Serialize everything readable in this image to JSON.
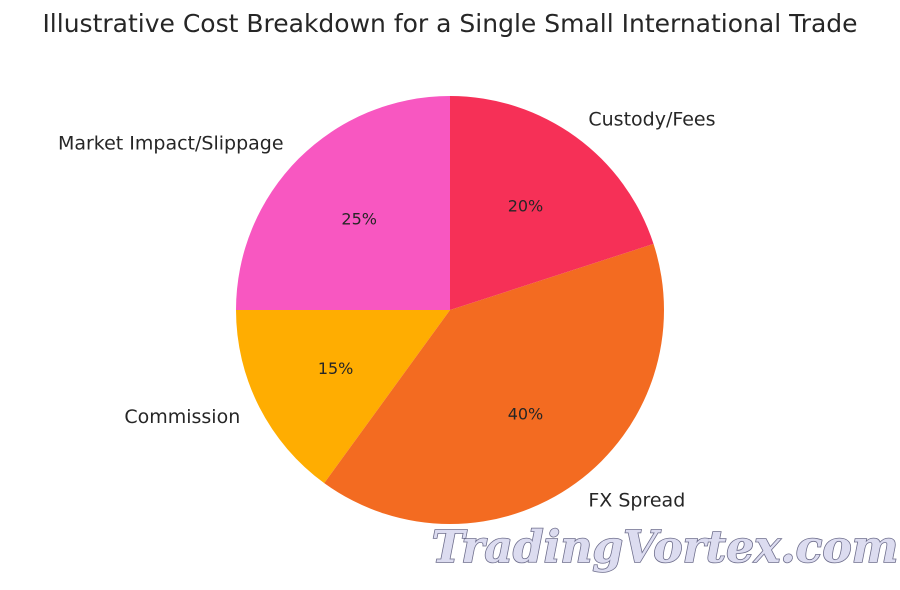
{
  "chart_data": {
    "type": "pie",
    "title": "Illustrative Cost Breakdown for a Single Small International Trade",
    "slices": [
      {
        "label": "Market Impact/Slippage",
        "value": 25,
        "pct_label": "25%",
        "color": "#f857c1"
      },
      {
        "label": "Commission",
        "value": 15,
        "pct_label": "15%",
        "color": "#ffad01"
      },
      {
        "label": "FX Spread",
        "value": 40,
        "pct_label": "40%",
        "color": "#f36b21"
      },
      {
        "label": "Custody/Fees",
        "value": 20,
        "pct_label": "20%",
        "color": "#f63057"
      }
    ],
    "start_angle_deg": 90,
    "direction": "counterclockwise",
    "legend": "none"
  },
  "watermark": {
    "text": "TradingVortex.com"
  }
}
